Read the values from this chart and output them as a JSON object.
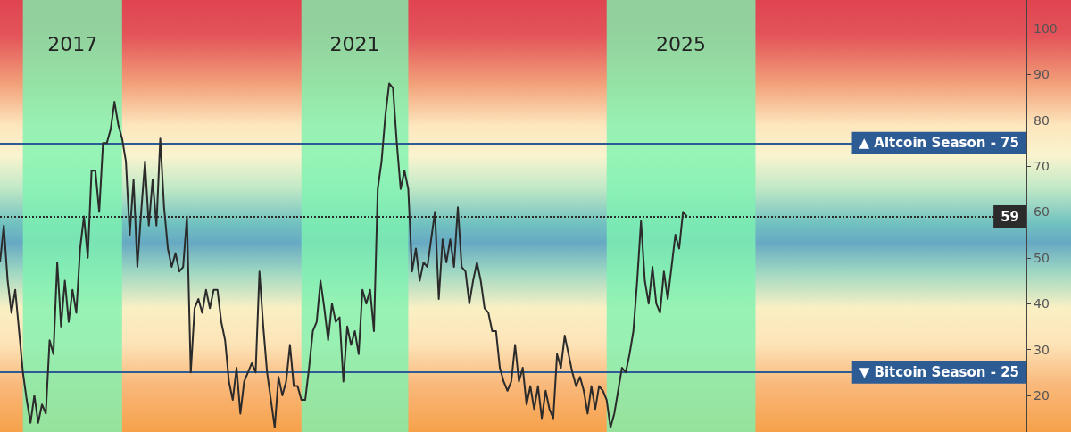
{
  "chart_data": {
    "type": "line",
    "tick_labels": "y",
    "grid": false,
    "line_style": "solid",
    "annotations": [
      "2017",
      "2021",
      "2025"
    ],
    "ylim": [
      12,
      106.2
    ],
    "yticks": [
      20,
      30,
      40,
      50,
      60,
      70,
      80,
      90,
      100
    ],
    "categories": [
      null,
      null,
      null,
      null,
      null,
      null,
      null,
      null,
      null,
      null,
      null,
      null,
      null,
      null,
      null,
      null,
      null,
      null,
      null,
      null,
      null,
      null,
      null,
      null,
      null,
      null,
      null,
      null,
      null,
      null,
      null,
      null,
      null,
      null,
      null,
      null,
      null,
      null,
      null,
      null,
      null,
      null,
      null,
      null,
      null,
      null,
      null,
      null,
      null,
      null,
      null,
      null,
      null,
      null,
      null,
      null,
      null,
      null,
      null,
      null,
      null,
      null,
      null,
      null,
      null,
      null,
      null,
      null,
      null,
      null,
      null,
      null,
      null,
      null,
      null,
      null,
      null,
      null,
      null,
      null,
      null,
      null,
      null,
      null,
      null,
      null,
      null,
      null,
      null,
      null,
      null,
      null,
      null,
      null,
      null,
      null,
      null,
      null,
      null,
      null,
      null,
      null,
      null,
      null,
      null,
      null,
      null,
      null,
      null,
      null,
      null,
      null,
      null,
      null,
      null,
      null,
      null,
      null,
      null,
      null,
      null,
      null,
      null,
      null,
      null,
      null,
      null,
      null,
      null,
      null,
      null,
      null,
      null,
      null,
      null,
      null,
      null,
      null,
      null,
      null,
      null,
      null,
      null,
      null,
      null,
      null,
      null,
      null,
      null,
      null,
      null,
      null,
      null,
      null,
      null,
      null,
      null,
      null,
      null,
      null,
      null,
      null,
      null,
      null,
      null,
      null,
      null,
      null,
      null,
      null,
      null,
      null,
      null,
      null,
      null,
      null,
      null,
      null,
      null,
      null,
      null,
      null,
      null,
      null,
      null,
      null,
      null,
      null,
      null,
      null,
      null,
      null,
      null,
      null,
      null,
      null,
      null,
      null,
      null,
      null,
      null,
      null,
      null,
      null,
      null,
      null,
      null,
      null,
      null,
      null,
      null,
      null,
      null,
      null,
      null,
      null,
      null,
      null,
      null,
      null,
      null,
      null,
      null,
      null,
      null,
      null,
      null,
      null,
      null,
      null,
      null,
      null,
      null,
      null,
      null,
      null,
      null,
      null,
      null,
      null,
      null,
      null,
      null,
      null,
      null,
      null,
      null,
      null,
      null,
      null,
      null,
      null,
      null,
      null,
      null,
      null,
      null,
      null,
      null,
      null,
      null,
      null,
      null,
      null,
      null,
      null,
      null,
      null,
      null,
      null
    ],
    "series": [
      {
        "color": "#2b2b2b",
        "values": [
          49,
          57,
          45,
          38,
          43,
          34,
          25,
          19,
          14,
          20,
          14,
          18,
          16,
          32,
          29,
          49,
          35,
          45,
          36,
          43,
          38,
          52,
          59,
          50,
          69,
          69,
          60,
          75,
          75,
          78,
          84,
          79,
          76,
          71,
          55,
          67,
          48,
          60,
          71,
          57,
          67,
          57,
          76,
          61,
          52,
          48,
          51,
          47,
          48,
          59,
          25,
          39,
          41,
          38,
          43,
          39,
          43,
          43,
          36,
          32,
          23,
          19,
          26,
          16,
          23,
          25,
          27,
          25,
          47,
          35,
          25,
          19,
          13,
          24,
          20,
          23,
          31,
          22,
          22,
          19,
          19,
          26,
          34,
          36,
          45,
          39,
          32,
          40,
          36,
          37,
          23,
          35,
          31,
          34,
          29,
          43,
          40,
          43,
          34,
          65,
          71,
          81,
          88,
          87,
          75,
          65,
          69,
          65,
          47,
          52,
          45,
          49,
          48,
          54,
          60,
          41,
          54,
          49,
          54,
          48,
          61,
          48,
          47,
          40,
          45,
          49,
          45,
          39,
          38,
          34,
          34,
          26,
          23,
          21,
          23,
          31,
          23,
          26,
          18,
          22,
          17,
          22,
          15,
          21,
          17,
          15,
          29,
          26,
          33,
          29,
          25,
          22,
          24,
          21,
          16,
          22,
          17,
          22,
          21,
          19,
          13,
          16,
          21,
          26,
          25,
          29,
          34,
          45,
          58,
          45,
          40,
          48,
          40,
          38,
          47,
          41,
          48,
          55,
          52,
          60,
          59,
          null,
          null,
          null,
          null,
          null,
          null,
          null,
          null,
          null,
          null,
          null,
          null,
          null,
          null,
          null,
          null,
          null,
          null,
          null,
          null,
          null,
          null,
          null,
          null,
          null,
          null,
          null,
          null,
          null,
          null,
          null,
          null,
          null,
          null,
          null,
          null,
          null,
          null,
          null,
          null,
          null,
          null,
          null,
          null,
          null,
          null,
          null,
          null,
          null,
          null,
          null,
          null,
          null,
          null,
          null,
          null,
          null,
          null,
          null,
          null,
          null,
          null,
          null,
          null,
          null,
          null,
          null,
          null,
          null,
          null,
          null,
          null,
          null,
          null,
          null,
          null,
          null,
          null,
          null,
          null,
          null,
          null,
          null,
          null,
          null,
          null,
          null,
          null,
          null
        ]
      }
    ],
    "ref_lines": [
      {
        "axis": "y",
        "value": 75,
        "label": "▲ Altcoin Season - 75",
        "color": "#2d5b94",
        "line_style": "solid"
      },
      {
        "axis": "y",
        "value": 25,
        "label": "▼ Bitcoin Season - 25",
        "color": "#2d5b94",
        "line_style": "solid"
      },
      {
        "axis": "y",
        "value": 59,
        "label": "59",
        "color": "#2b2b2b",
        "line_style": "dotted"
      }
    ]
  }
}
